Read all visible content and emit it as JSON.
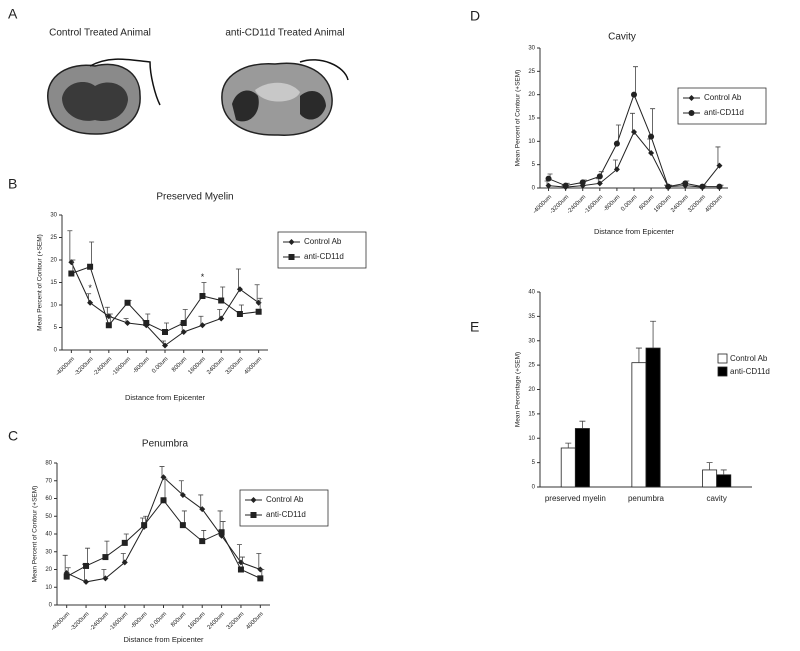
{
  "panel_a": {
    "label": "A",
    "images": [
      "Control Treated Animal",
      "anti-CD11d Treated Animal"
    ]
  },
  "chart_data": [
    {
      "type": "line",
      "label": "B",
      "title": "Preserved Myelin",
      "x_label": "Distance from Epicenter",
      "y_label": "Mean Percent of Contour (+SEM)",
      "categories": [
        "-4000um",
        "-3200um",
        "-2400um",
        "-1600um",
        "-800um",
        "0.00um",
        "800um",
        "1600um",
        "2400um",
        "3200um",
        "4000um"
      ],
      "series": [
        {
          "name": "Control Ab",
          "marker": "diamond",
          "color": "#222222",
          "values": [
            19.5,
            10.5,
            7.5,
            6,
            5.5,
            1,
            4,
            5.5,
            7,
            13.5,
            10.5
          ],
          "errors": [
            7,
            2,
            2,
            1,
            1,
            1,
            2,
            2,
            2,
            4.5,
            4
          ]
        },
        {
          "name": "anti-CD11d",
          "marker": "square",
          "color": "#222222",
          "values": [
            17,
            18.5,
            5.5,
            10.5,
            6,
            4,
            6,
            12,
            11,
            8,
            8.5
          ],
          "errors": [
            3,
            5.5,
            2.5,
            0.5,
            2,
            2,
            3,
            3,
            3,
            2,
            3
          ]
        }
      ],
      "annotations": [
        "*",
        "*"
      ],
      "ylim": [
        0,
        30
      ],
      "yticks": [
        0,
        5,
        10,
        15,
        20,
        25,
        30
      ]
    },
    {
      "type": "line",
      "label": "C",
      "title": "Penumbra",
      "x_label": "Distance from Epicenter",
      "y_label": "Mean Percent of Contour (+SEM)",
      "categories": [
        "-4000um",
        "-3200um",
        "-2400um",
        "-1600um",
        "-800um",
        "0.00um",
        "800um",
        "1600um",
        "2400um",
        "3200um",
        "4000um"
      ],
      "series": [
        {
          "name": "Control Ab",
          "marker": "diamond",
          "color": "#222222",
          "values": [
            18,
            13,
            15,
            24,
            44,
            72,
            62,
            54,
            39,
            24,
            20
          ],
          "errors": [
            10,
            10,
            5,
            5,
            5,
            6,
            8,
            8,
            14,
            10,
            9
          ]
        },
        {
          "name": "anti-CD11d",
          "marker": "square",
          "color": "#222222",
          "values": [
            16,
            22,
            27,
            35,
            45,
            59,
            45,
            36,
            41,
            20,
            15
          ],
          "errors": [
            5,
            10,
            9,
            5,
            5,
            12,
            8,
            6,
            6,
            7,
            5
          ]
        }
      ],
      "ylim": [
        0,
        80
      ],
      "yticks": [
        0,
        10,
        20,
        30,
        40,
        50,
        60,
        70,
        80
      ]
    },
    {
      "type": "line",
      "label": "D",
      "title": "Cavity",
      "x_label": "Distance from Epicenter",
      "y_label": "Mean Percent of Contour (+SEM)",
      "categories": [
        "-4000um",
        "-3200um",
        "-2400um",
        "-1600um",
        "-800um",
        "0.00um",
        "800um",
        "1600um",
        "2400um",
        "3200um",
        "4000um"
      ],
      "series": [
        {
          "name": "Control Ab",
          "marker": "diamond",
          "color": "#222222",
          "values": [
            0.5,
            0.2,
            0.5,
            1,
            4,
            12,
            7.5,
            0.3,
            0.5,
            0.2,
            4.8
          ],
          "errors": [
            1,
            0.3,
            0.5,
            1,
            2,
            4,
            3,
            0.3,
            0.5,
            0.2,
            4
          ]
        },
        {
          "name": "anti-CD11d",
          "marker": "circle",
          "color": "#222222",
          "values": [
            2,
            0.5,
            1.2,
            2.5,
            9.5,
            20,
            11,
            0.3,
            1,
            0.3,
            0.3
          ],
          "errors": [
            1,
            0.5,
            0.5,
            1,
            4,
            6,
            6,
            0.3,
            0.5,
            0.3,
            0.3
          ]
        }
      ],
      "ylim": [
        0,
        30
      ],
      "yticks": [
        0,
        5,
        10,
        15,
        20,
        25,
        30
      ]
    },
    {
      "type": "bar",
      "label": "E",
      "y_label": "Mean Percentage (+SEM)",
      "categories": [
        "preserved myelin",
        "penumbra",
        "cavity"
      ],
      "series": [
        {
          "name": "Control Ab",
          "color": "#ffffff",
          "values": [
            8,
            25.5,
            3.5
          ],
          "errors": [
            1,
            3,
            1.5
          ]
        },
        {
          "name": "anti-CD11d",
          "color": "#000000",
          "values": [
            12,
            28.5,
            2.5
          ],
          "errors": [
            1.5,
            5.5,
            1
          ]
        }
      ],
      "ylim": [
        0,
        40
      ],
      "yticks": [
        0,
        5,
        10,
        15,
        20,
        25,
        30,
        35,
        40
      ]
    }
  ]
}
